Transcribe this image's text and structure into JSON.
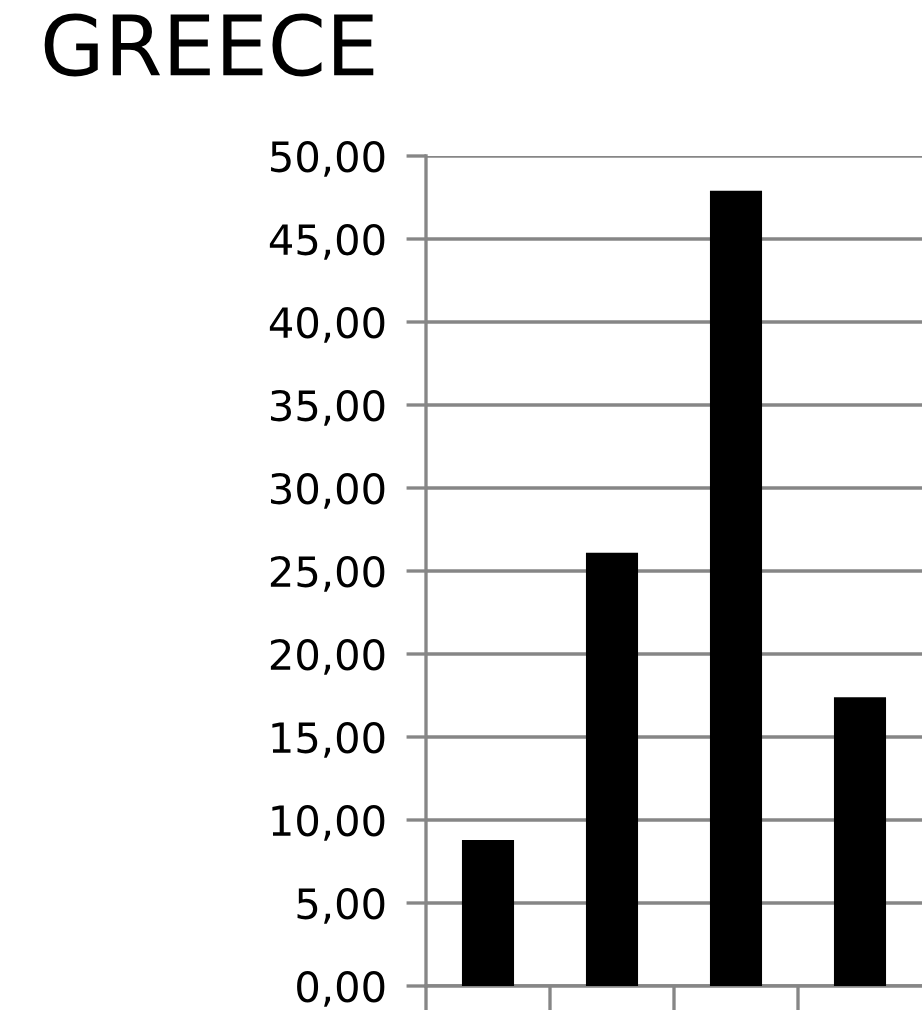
{
  "chart_data": {
    "type": "bar",
    "title": "GREECE",
    "categories": [
      null,
      null,
      null,
      null
    ],
    "values": [
      8.8,
      26.1,
      47.9,
      17.4
    ],
    "color": "#000000",
    "ylim": [
      0,
      50
    ],
    "yticks": [
      {
        "value": 0,
        "label": "0,00"
      },
      {
        "value": 5,
        "label": "5,00"
      },
      {
        "value": 10,
        "label": "10,00"
      },
      {
        "value": 15,
        "label": "15,00"
      },
      {
        "value": 20,
        "label": "20,00"
      },
      {
        "value": 25,
        "label": "25,00"
      },
      {
        "value": 30,
        "label": "30,00"
      },
      {
        "value": 35,
        "label": "35,00"
      },
      {
        "value": 40,
        "label": "40,00"
      },
      {
        "value": 45,
        "label": "45,00"
      },
      {
        "value": 50,
        "label": "50,00"
      }
    ],
    "grid": "y"
  }
}
